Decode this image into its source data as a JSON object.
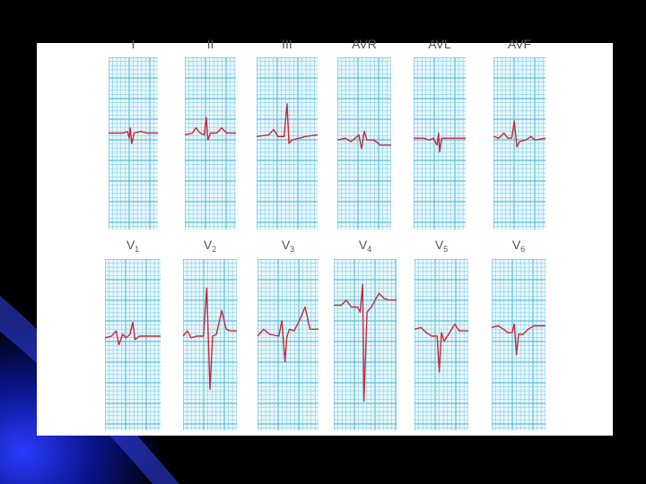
{
  "slide": {
    "background_color": "#000000",
    "accent_color": "#1e2fd8",
    "panel_color": "#ffffff"
  },
  "ecg": {
    "grid_color": "#7fd0e6",
    "grid_major_color": "#5fbcdc",
    "paper_color": "#eaf8fc",
    "trace_color": "#c8283c",
    "limb_leads": [
      {
        "label": "I",
        "sub": ""
      },
      {
        "label": "II",
        "sub": ""
      },
      {
        "label": "III",
        "sub": ""
      },
      {
        "label": "AVR",
        "sub": ""
      },
      {
        "label": "AVL",
        "sub": ""
      },
      {
        "label": "AVF",
        "sub": ""
      }
    ],
    "chest_leads": [
      {
        "label": "V",
        "sub": "1"
      },
      {
        "label": "V",
        "sub": "2"
      },
      {
        "label": "V",
        "sub": "3"
      },
      {
        "label": "V",
        "sub": "4"
      },
      {
        "label": "V",
        "sub": "5"
      },
      {
        "label": "V",
        "sub": "6"
      }
    ]
  }
}
